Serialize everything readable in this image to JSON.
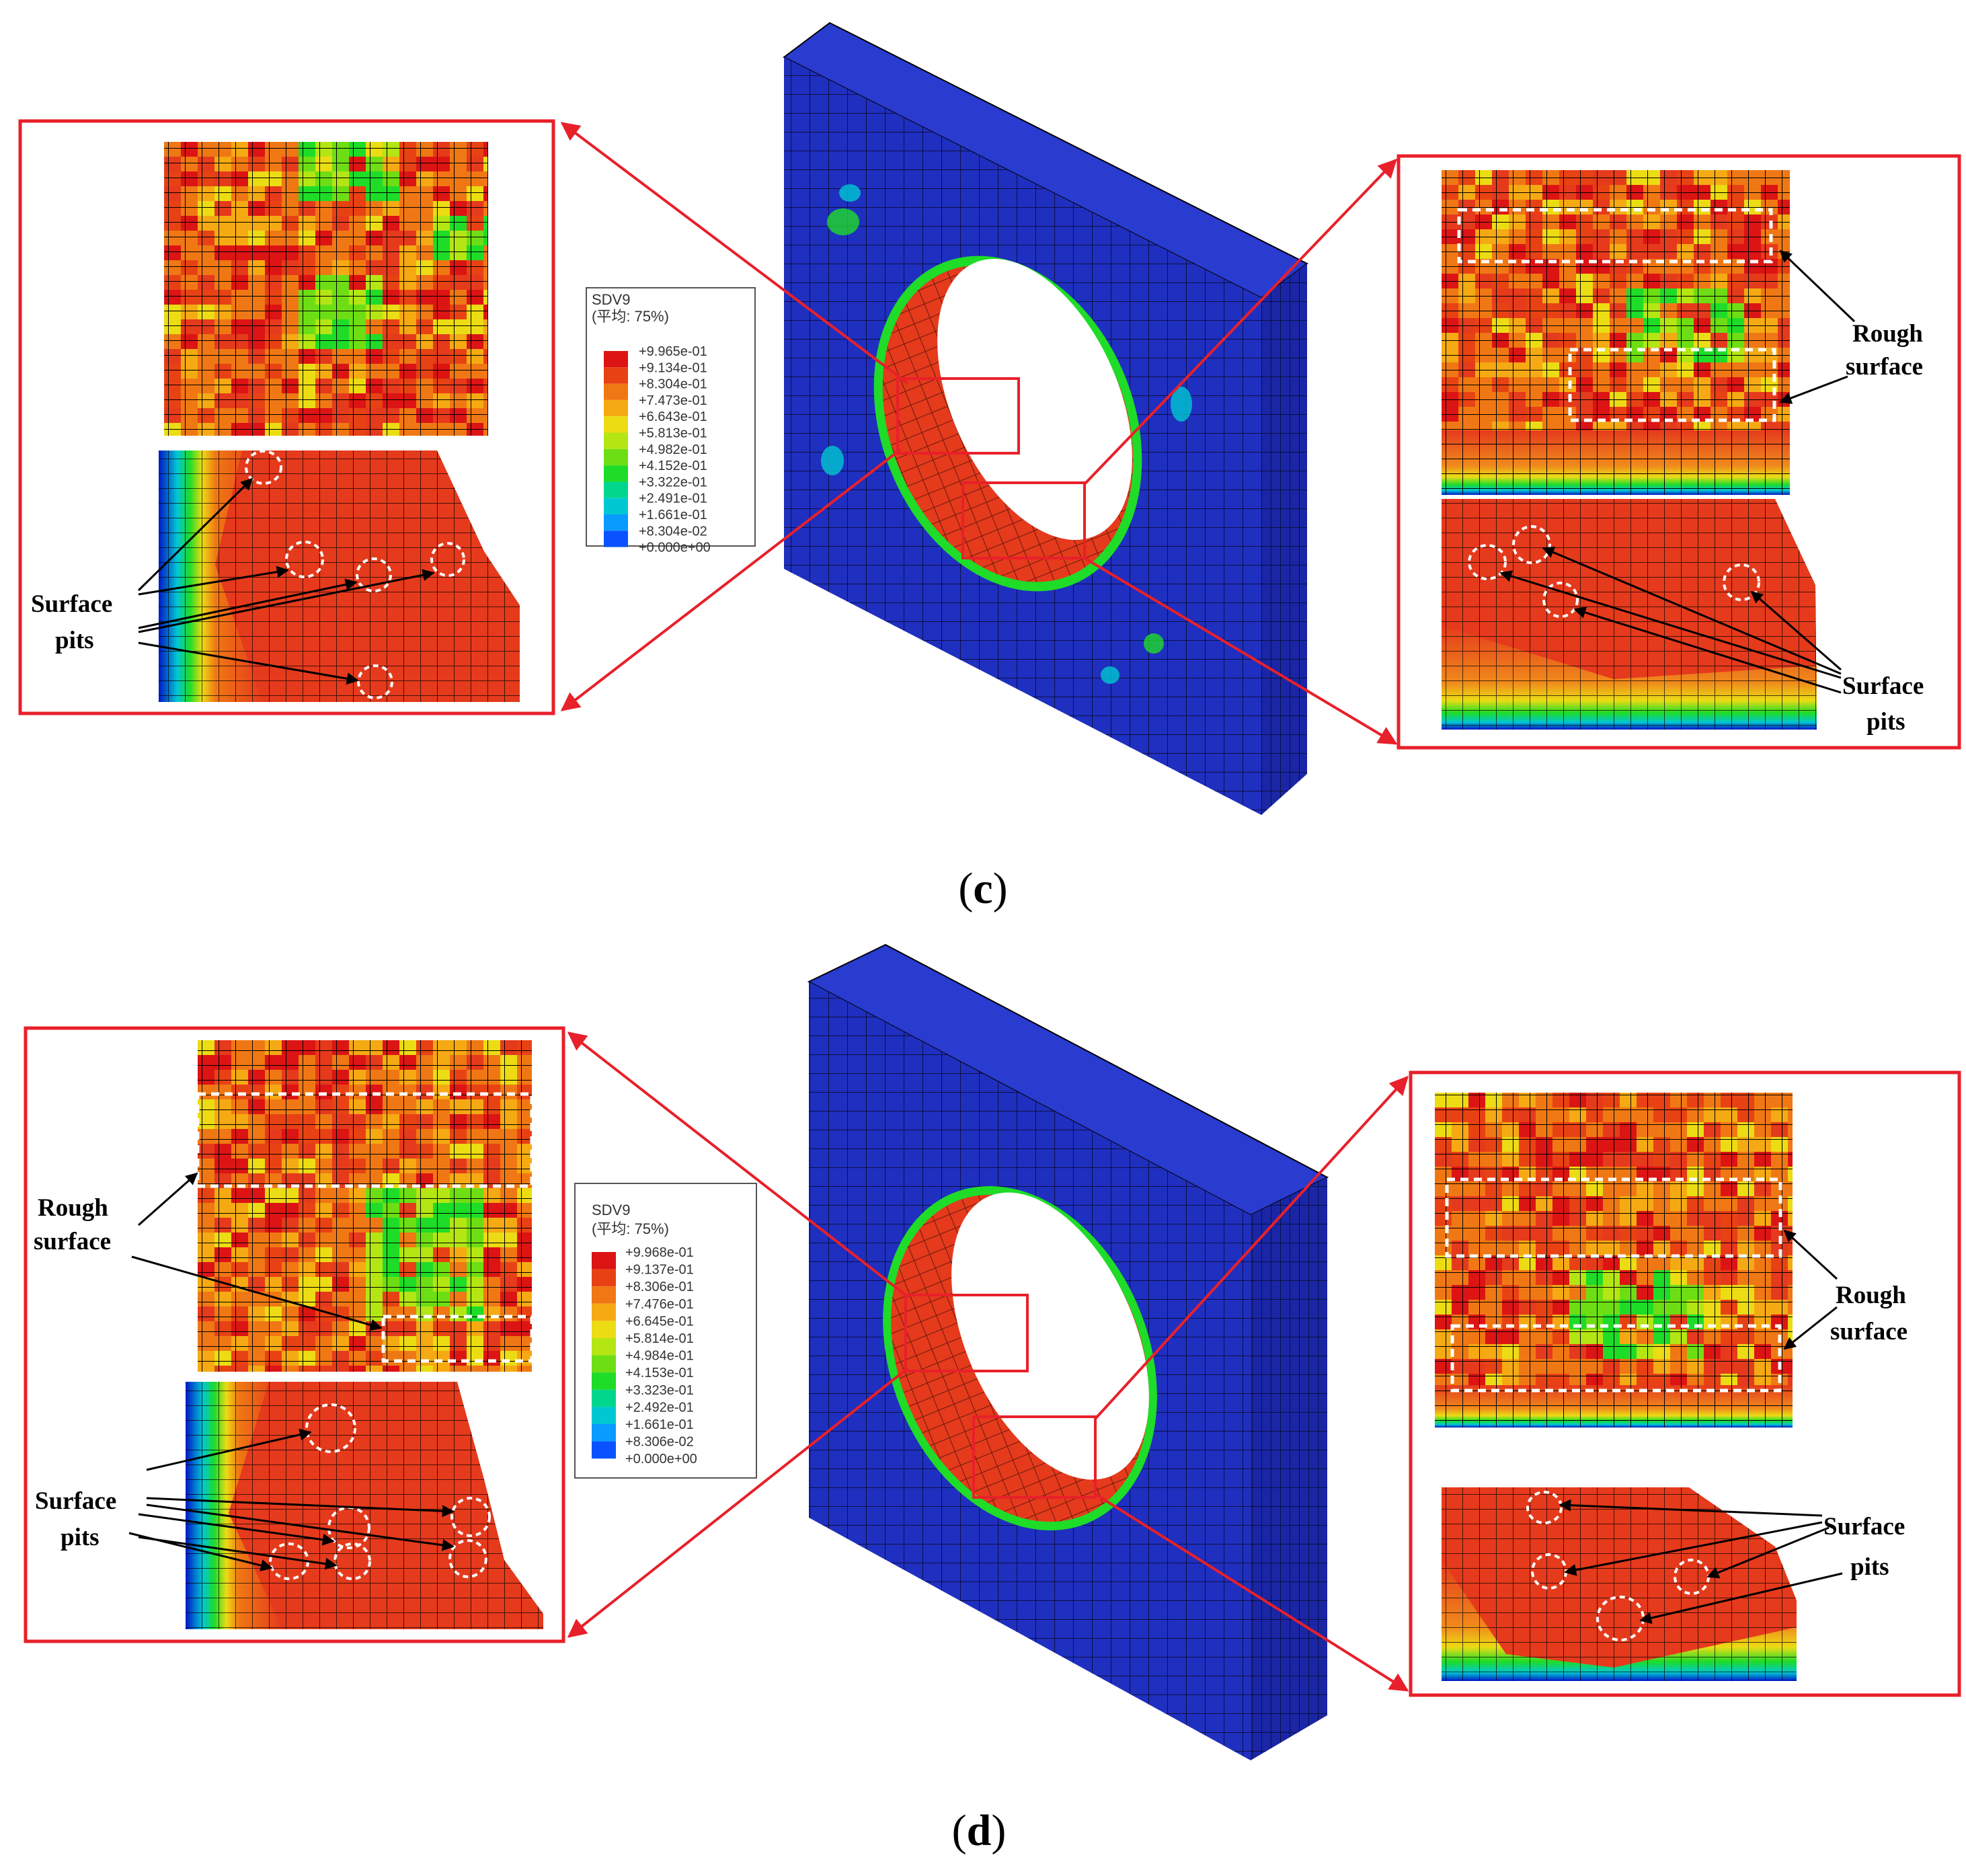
{
  "colors": {
    "outline": "#e8202a",
    "plate_front": "#1f2fbf",
    "plate_side": "#1a26a6",
    "plate_top": "#2a3bd0",
    "damage_hot": "#e53a1c",
    "damage_mid": "#f08a1c",
    "mesh_line": "#000000",
    "marker": "#ffffff"
  },
  "scale": [
    "#0016c8",
    "#0a52ff",
    "#0a9bff",
    "#00c8d2",
    "#00d68c",
    "#1edc28",
    "#6ede14",
    "#b4e614",
    "#ecdc14",
    "#f5aa14",
    "#f07814",
    "#e84214",
    "#dc1414"
  ],
  "panels": [
    {
      "id": "c",
      "label_open": "(",
      "label_letter": "c",
      "label_close": ")",
      "legend": {
        "title": "SDV9",
        "subtitle": "(平均: 75%)",
        "values": [
          "+9.965e-01",
          "+9.134e-01",
          "+8.304e-01",
          "+7.473e-01",
          "+6.643e-01",
          "+5.813e-01",
          "+4.982e-01",
          "+4.152e-01",
          "+3.322e-01",
          "+2.491e-01",
          "+1.661e-01",
          "+8.304e-02",
          "+0.000e+00"
        ]
      },
      "left_callouts": [
        "Surface",
        "pits"
      ],
      "right_callouts_top": [
        "Rough",
        "surface"
      ],
      "right_callouts_bottom": [
        "Surface",
        "pits"
      ]
    },
    {
      "id": "d",
      "label_open": "(",
      "label_letter": "d",
      "label_close": ")",
      "legend": {
        "title": "SDV9",
        "subtitle": "(平均: 75%)",
        "values": [
          "+9.968e-01",
          "+9.137e-01",
          "+8.306e-01",
          "+7.476e-01",
          "+6.645e-01",
          "+5.814e-01",
          "+4.984e-01",
          "+4.153e-01",
          "+3.323e-01",
          "+2.492e-01",
          "+1.661e-01",
          "+8.306e-02",
          "+0.000e+00"
        ]
      },
      "left_callouts_top": [
        "Rough",
        "surface"
      ],
      "left_callouts_bottom": [
        "Surface",
        "pits"
      ],
      "right_callouts_top": [
        "Rough",
        "surface"
      ],
      "right_callouts_bottom": [
        "Surface",
        "pits"
      ]
    }
  ]
}
